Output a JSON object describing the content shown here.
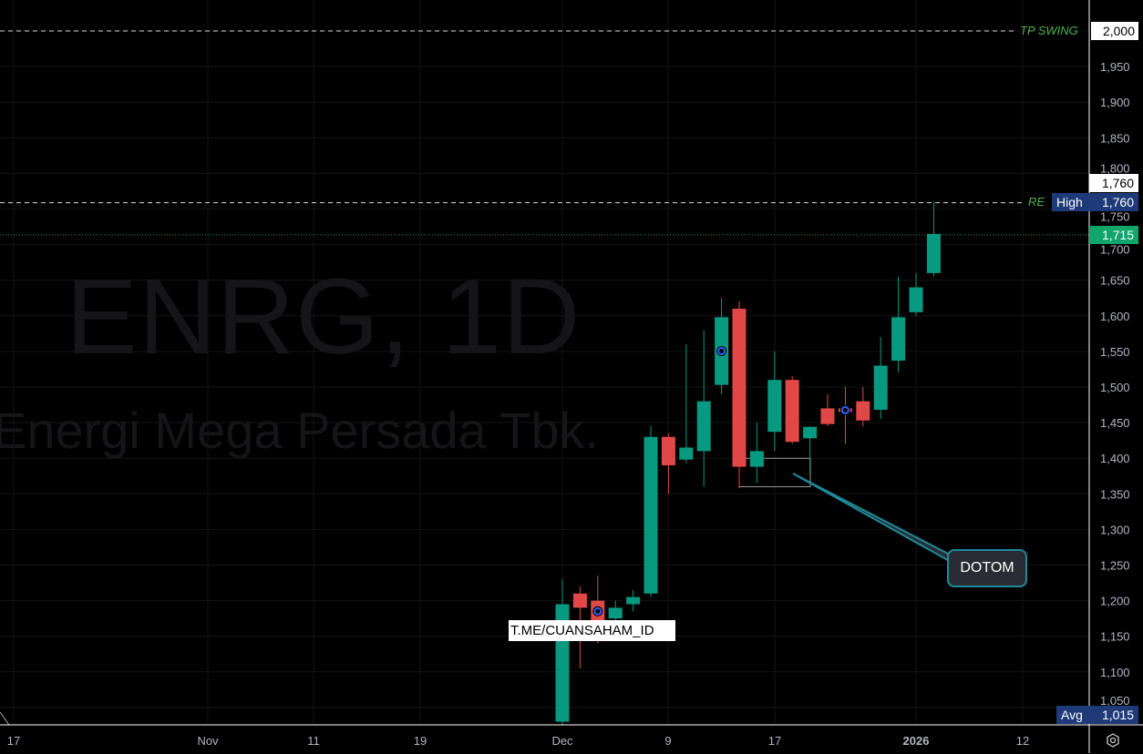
{
  "chart_data": {
    "type": "candlestick",
    "symbol_watermark": "ENRG, 1D",
    "name_watermark": "Energi Mega Persada Tbk.",
    "ylim": [
      1020,
      2040
    ],
    "y_ticks": [
      2000,
      1950,
      1900,
      1850,
      1800,
      1750,
      1700,
      1650,
      1600,
      1550,
      1500,
      1450,
      1400,
      1350,
      1300,
      1250,
      1200,
      1150,
      1100,
      1050
    ],
    "x_ticks": [
      "17",
      "Nov",
      "11",
      "19",
      "Dec",
      "9",
      "17",
      "2026",
      "12"
    ],
    "candles": [
      {
        "o": 1030,
        "h": 1230,
        "l": 1000,
        "c": 1195
      },
      {
        "o": 1210,
        "h": 1220,
        "l": 1105,
        "c": 1190
      },
      {
        "o": 1200,
        "h": 1235,
        "l": 1140,
        "c": 1165
      },
      {
        "o": 1175,
        "h": 1200,
        "l": 1165,
        "c": 1190
      },
      {
        "o": 1195,
        "h": 1215,
        "l": 1185,
        "c": 1205
      },
      {
        "o": 1210,
        "h": 1445,
        "l": 1205,
        "c": 1430
      },
      {
        "o": 1430,
        "h": 1435,
        "l": 1350,
        "c": 1390
      },
      {
        "o": 1398,
        "h": 1560,
        "l": 1393,
        "c": 1415
      },
      {
        "o": 1410,
        "h": 1580,
        "l": 1360,
        "c": 1480
      },
      {
        "o": 1503,
        "h": 1625,
        "l": 1490,
        "c": 1598
      },
      {
        "o": 1610,
        "h": 1620,
        "l": 1358,
        "c": 1388
      },
      {
        "o": 1388,
        "h": 1450,
        "l": 1365,
        "c": 1410
      },
      {
        "o": 1437,
        "h": 1550,
        "l": 1410,
        "c": 1510
      },
      {
        "o": 1510,
        "h": 1515,
        "l": 1420,
        "c": 1423
      },
      {
        "o": 1428,
        "h": 1445,
        "l": 1378,
        "c": 1444
      },
      {
        "o": 1470,
        "h": 1490,
        "l": 1445,
        "c": 1448
      },
      {
        "o": 1470,
        "h": 1500,
        "l": 1420,
        "c": 1465
      },
      {
        "o": 1480,
        "h": 1500,
        "l": 1445,
        "c": 1453
      },
      {
        "o": 1468,
        "h": 1570,
        "l": 1455,
        "c": 1530
      },
      {
        "o": 1537,
        "h": 1655,
        "l": 1520,
        "c": 1598
      },
      {
        "o": 1605,
        "h": 1660,
        "l": 1600,
        "c": 1640
      },
      {
        "o": 1660,
        "h": 1760,
        "l": 1655,
        "c": 1715
      }
    ],
    "event_markers_on_candles": [
      2,
      9,
      16
    ],
    "horizontal_lines": [
      {
        "label": "TP SWING",
        "price": 2000,
        "style": "dashed"
      },
      {
        "label": "RE",
        "price": 1760,
        "style": "dashed"
      },
      {
        "price": 1715,
        "style": "dotted"
      }
    ],
    "price_tags": {
      "high_label": "High",
      "high": "1,760",
      "crosshair": "1,760",
      "last": "1,715",
      "avg_label": "Avg",
      "avg": "1,015"
    },
    "annotations": {
      "callout": "DOTOM",
      "watermark_text": "T.ME/CUANSAHAM_ID",
      "box_range": [
        1360,
        1400
      ]
    },
    "colors": {
      "up": "#089981",
      "down": "#e04848",
      "bg": "#000000",
      "tag_blue": "#1e3a78",
      "tag_green": "#0fa56b",
      "label_green": "#4caf50",
      "callout_border": "#1d8a99",
      "marker": "#2962ff"
    }
  }
}
